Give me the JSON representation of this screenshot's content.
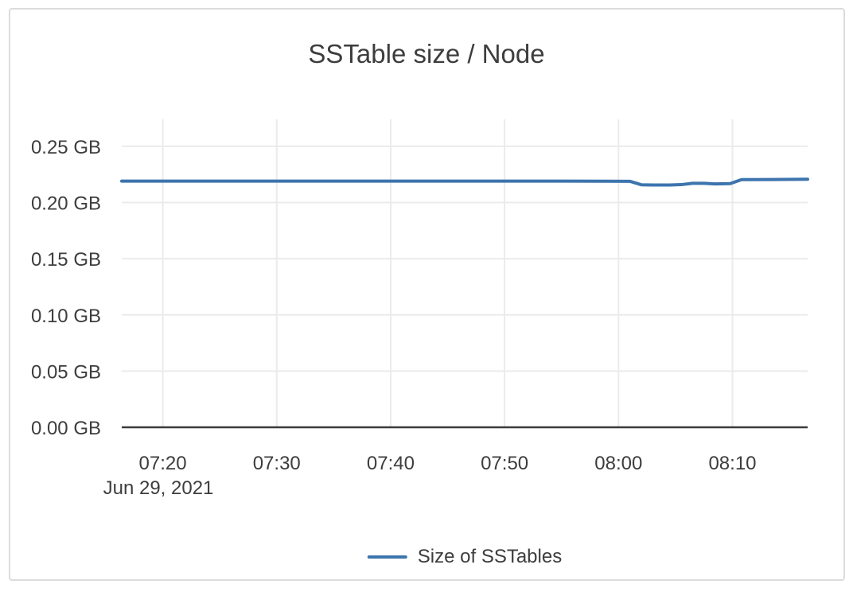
{
  "theme": {
    "text_color": "#3d3d3d",
    "grid_color": "#ebebeb",
    "axis_color": "#3a3a3a",
    "card_border_color": "#dcdcdc",
    "line_color": "#3d74ae"
  },
  "chart_data": {
    "type": "line",
    "title": "SSTable size / Node",
    "xlabel": "",
    "ylabel": "",
    "x_date": "Jun 29, 2021",
    "x_unit": "time of day (HH:MM)",
    "y_unit": "GB",
    "grid": true,
    "legend_position": "bottom-center",
    "xlim_minutes": [
      16.4,
      76.6
    ],
    "ylim": [
      0,
      0.274
    ],
    "x_ticks": [
      {
        "minutes": 20,
        "label": "07:20"
      },
      {
        "minutes": 30,
        "label": "07:30"
      },
      {
        "minutes": 40,
        "label": "07:40"
      },
      {
        "minutes": 50,
        "label": "07:50"
      },
      {
        "minutes": 60,
        "label": "08:00"
      },
      {
        "minutes": 70,
        "label": "08:10"
      }
    ],
    "y_ticks": [
      {
        "value": 0.0,
        "label": "0.00 GB"
      },
      {
        "value": 0.05,
        "label": "0.05 GB"
      },
      {
        "value": 0.1,
        "label": "0.10 GB"
      },
      {
        "value": 0.15,
        "label": "0.15 GB"
      },
      {
        "value": 0.2,
        "label": "0.20 GB"
      },
      {
        "value": 0.25,
        "label": "0.25 GB"
      }
    ],
    "series": [
      {
        "name": "Size of SSTables",
        "color": "#3d74ae",
        "points": [
          {
            "time": "07:16",
            "m": 16.4,
            "gb": 0.219
          },
          {
            "time": "07:25",
            "m": 25.0,
            "gb": 0.219
          },
          {
            "time": "07:35",
            "m": 35.0,
            "gb": 0.219
          },
          {
            "time": "07:45",
            "m": 45.0,
            "gb": 0.219
          },
          {
            "time": "07:55",
            "m": 55.0,
            "gb": 0.219
          },
          {
            "time": "08:01",
            "m": 61.0,
            "gb": 0.2189
          },
          {
            "time": "08:02",
            "m": 62.0,
            "gb": 0.2158
          },
          {
            "time": "08:03",
            "m": 63.0,
            "gb": 0.2156
          },
          {
            "time": "08:04",
            "m": 64.5,
            "gb": 0.2156
          },
          {
            "time": "08:05",
            "m": 65.5,
            "gb": 0.2159
          },
          {
            "time": "08:06",
            "m": 66.5,
            "gb": 0.2171
          },
          {
            "time": "08:07",
            "m": 67.5,
            "gb": 0.2171
          },
          {
            "time": "08:08",
            "m": 68.5,
            "gb": 0.2166
          },
          {
            "time": "08:10",
            "m": 69.8,
            "gb": 0.2168
          },
          {
            "time": "08:11",
            "m": 70.8,
            "gb": 0.2204
          },
          {
            "time": "08:13",
            "m": 73.5,
            "gb": 0.2205
          },
          {
            "time": "08:17",
            "m": 76.6,
            "gb": 0.2207
          }
        ]
      }
    ]
  }
}
